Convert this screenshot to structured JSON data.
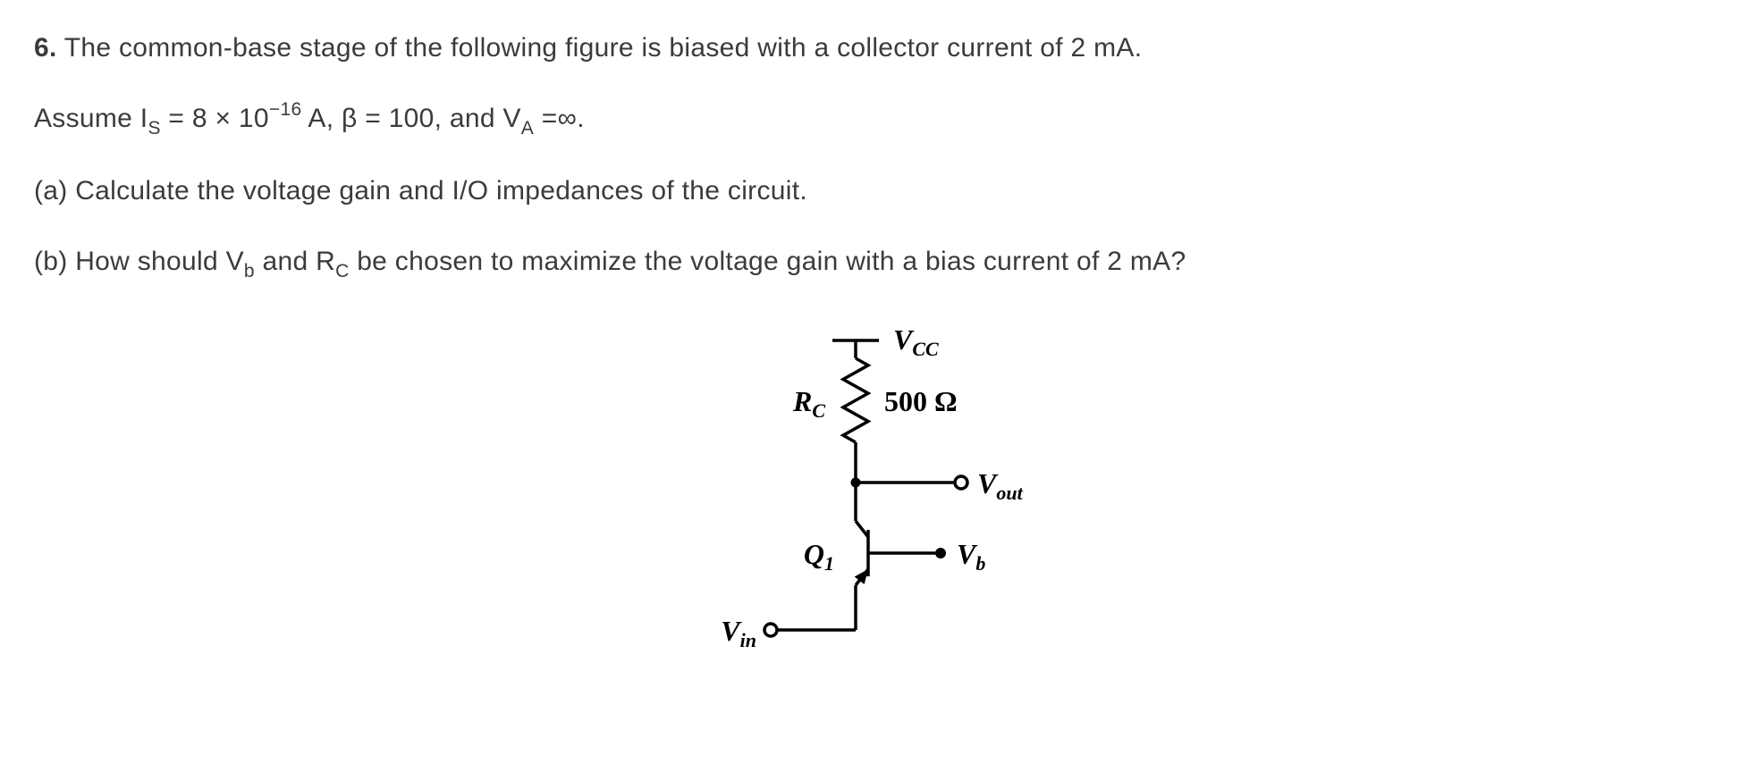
{
  "problem": {
    "number": "6.",
    "line1_part1": "The common-base stage of the following figure is biased with a collector current of 2 mA.",
    "line2_prefix": "Assume I",
    "line2_sub1": "S",
    "line2_part2": " = 8 × 10",
    "line2_sup1": "−16",
    "line2_part3": " A, β = 100, and V",
    "line2_sub2": "A",
    "line2_part4": " =∞.",
    "partA_prefix": "(a) Calculate the voltage gain and I/O impedances of the circuit.",
    "partB_prefix": "(b) How should V",
    "partB_sub1": "b",
    "partB_part2": " and R",
    "partB_sub2": "C",
    "partB_part3": " be chosen to maximize the voltage gain with a bias current of 2 mA?"
  },
  "circuit": {
    "vcc_label": "V",
    "vcc_sub": "CC",
    "rc_label": "R",
    "rc_sub": "C",
    "rc_value": "500 Ω",
    "vout_label": "V",
    "vout_sub": "out",
    "q1_label": "Q",
    "q1_sub": "1",
    "vb_label": "V",
    "vb_sub": "b",
    "vin_label": "V",
    "vin_sub": "in",
    "colors": {
      "stroke": "#000000",
      "text": "#000000",
      "bg": "#ffffff"
    },
    "stroke_width": 3.5,
    "font_family": "Georgia, 'Times New Roman', serif",
    "label_fontsize": 32,
    "sub_fontsize": 22
  }
}
